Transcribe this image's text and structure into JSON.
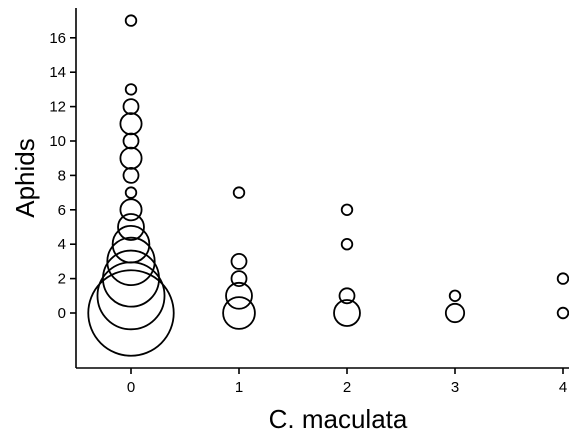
{
  "chart_data": {
    "type": "scatter",
    "title": "",
    "xlabel": "C. maculata",
    "ylabel": "Aphids",
    "xlim": [
      -0.5,
      4.1
    ],
    "ylim": [
      -3.1,
      17.5
    ],
    "xticks": [
      0,
      1,
      2,
      3,
      4
    ],
    "yticks": [
      0,
      2,
      4,
      6,
      8,
      10,
      12,
      14,
      16
    ],
    "grid": false,
    "legend": "none",
    "marker_color": "#000000",
    "points": [
      {
        "x": 0,
        "y": 17,
        "count": 1
      },
      {
        "x": 0,
        "y": 13,
        "count": 1
      },
      {
        "x": 0,
        "y": 12,
        "count": 2
      },
      {
        "x": 0,
        "y": 11,
        "count": 4
      },
      {
        "x": 0,
        "y": 10,
        "count": 2
      },
      {
        "x": 0,
        "y": 9,
        "count": 4
      },
      {
        "x": 0,
        "y": 8,
        "count": 2
      },
      {
        "x": 0,
        "y": 7,
        "count": 1
      },
      {
        "x": 0,
        "y": 6,
        "count": 4
      },
      {
        "x": 0,
        "y": 5,
        "count": 6
      },
      {
        "x": 0,
        "y": 4,
        "count": 12
      },
      {
        "x": 0,
        "y": 3,
        "count": 20
      },
      {
        "x": 0,
        "y": 2,
        "count": 28
      },
      {
        "x": 0,
        "y": 1,
        "count": 40
      },
      {
        "x": 0,
        "y": 0,
        "count": 65
      },
      {
        "x": 1,
        "y": 7,
        "count": 1
      },
      {
        "x": 1,
        "y": 3,
        "count": 2
      },
      {
        "x": 1,
        "y": 2,
        "count": 2
      },
      {
        "x": 1,
        "y": 1,
        "count": 6
      },
      {
        "x": 1,
        "y": 0,
        "count": 9
      },
      {
        "x": 2,
        "y": 6,
        "count": 1
      },
      {
        "x": 2,
        "y": 4,
        "count": 1
      },
      {
        "x": 2,
        "y": 1,
        "count": 2
      },
      {
        "x": 2,
        "y": 0,
        "count": 6
      },
      {
        "x": 3,
        "y": 1,
        "count": 1
      },
      {
        "x": 3,
        "y": 0,
        "count": 3
      },
      {
        "x": 4,
        "y": 2,
        "count": 1
      },
      {
        "x": 4,
        "y": 0,
        "count": 1
      }
    ]
  }
}
